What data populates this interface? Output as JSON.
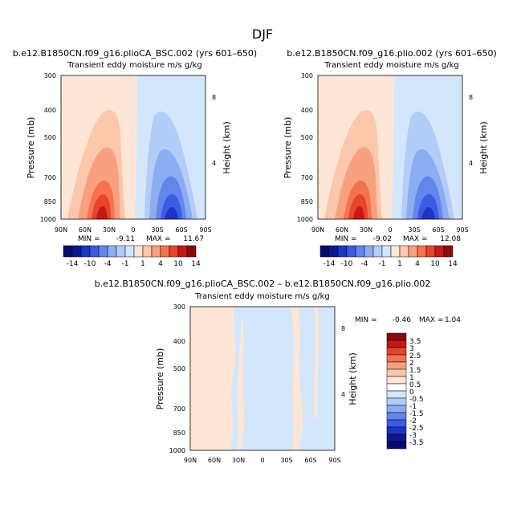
{
  "figure": {
    "title": "DJF"
  },
  "colors": {
    "warm": [
      "#fde6d6",
      "#fcc7aa",
      "#f9a17e",
      "#f4744f",
      "#e8432b",
      "#c8171c",
      "#8a0a0a"
    ],
    "cool": [
      "#d4e6fc",
      "#b2cdf8",
      "#8cadf2",
      "#6485ec",
      "#3d5ae4",
      "#1d34c4",
      "#0a1a8e",
      "#0a0a6e"
    ],
    "panel_bg": "#ffffff"
  },
  "chart_data": [
    {
      "type": "contour",
      "title": "b.e12.B1850CN.f09_g16.plioCA_BSC.002 (yrs 601–650)",
      "subtitle": "Transient eddy moisture m/s g/kg",
      "xlabel": "",
      "ylabel": "Pressure (mb)",
      "ylabel_right": "Height (km)",
      "x_ticks": [
        "90N",
        "60N",
        "30N",
        "0",
        "30S",
        "60S",
        "90S"
      ],
      "y_ticks": [
        "300",
        "400",
        "500",
        "700",
        "850",
        "1000"
      ],
      "height_ticks": [
        "8",
        "4"
      ],
      "min_label": "MIN =",
      "min": "-9.11",
      "max_label": "MAX =",
      "max": "11.67"
    },
    {
      "type": "contour",
      "title": "b.e12.B1850CN.f09_g16.plio.002 (yrs 601–650)",
      "subtitle": "Transient eddy moisture m/s g/kg",
      "xlabel": "",
      "ylabel": "Pressure (mb)",
      "ylabel_right": "Height (km)",
      "x_ticks": [
        "90N",
        "60N",
        "30N",
        "0",
        "30S",
        "60S",
        "90S"
      ],
      "y_ticks": [
        "300",
        "400",
        "500",
        "700",
        "850",
        "1000"
      ],
      "height_ticks": [
        "8",
        "4"
      ],
      "min_label": "MIN =",
      "min": "-9.02",
      "max_label": "MAX =",
      "max": "12.08"
    },
    {
      "type": "contour",
      "title": "b.e12.B1850CN.f09_g16.plioCA_BSC.002 – b.e12.B1850CN.f09_g16.plio.002",
      "subtitle": "Transient eddy moisture m/s g/kg",
      "xlabel": "",
      "ylabel": "Pressure (mb)",
      "ylabel_right": "Height (km)",
      "x_ticks": [
        "90N",
        "60N",
        "30N",
        "0",
        "30S",
        "60S",
        "90S"
      ],
      "y_ticks": [
        "300",
        "400",
        "500",
        "700",
        "850",
        "1000"
      ],
      "height_ticks": [
        "8",
        "4"
      ],
      "min_label": "MIN =",
      "min": "-0.46",
      "max_label": "MAX =",
      "max": "1.04"
    }
  ],
  "colorbar_top": {
    "labels": [
      "-14",
      "-10",
      "-4",
      "-1",
      "1",
      "4",
      "10",
      "14"
    ]
  },
  "colorbar_diff": {
    "labels": [
      "3.5",
      "3",
      "2.5",
      "2",
      "1.5",
      "1",
      "0.5",
      "0",
      "-0.5",
      "-1",
      "-1.5",
      "-2",
      "-2.5",
      "-3",
      "-3.5"
    ]
  }
}
